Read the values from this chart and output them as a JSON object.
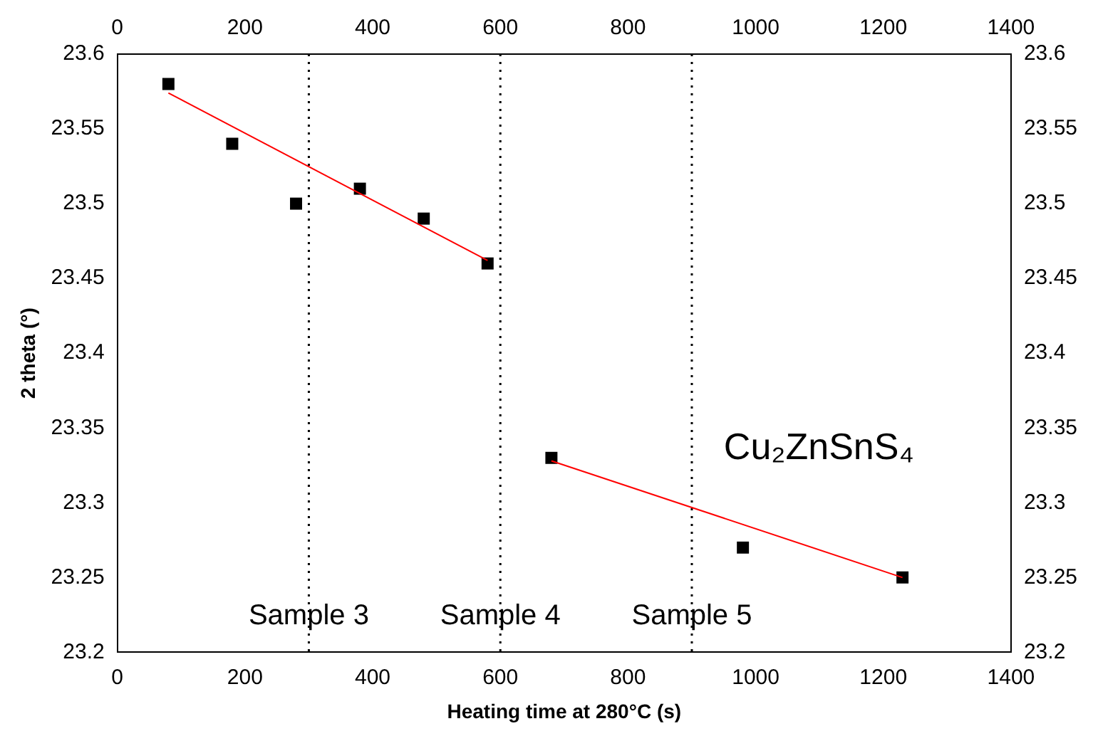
{
  "chart_data": {
    "type": "scatter",
    "xlabel": "Heating time at 280°C (s)",
    "ylabel": "2 theta (°)",
    "xlim": [
      0,
      1400
    ],
    "xticks": [
      0,
      200,
      400,
      600,
      800,
      1000,
      1200,
      1400
    ],
    "x2lim": [
      0,
      1400
    ],
    "x2ticks": [
      0,
      200,
      400,
      600,
      800,
      1000,
      1200,
      1400
    ],
    "ylim": [
      23.2,
      23.6
    ],
    "yticks": [
      23.2,
      23.25,
      23.3,
      23.35,
      23.4,
      23.45,
      23.5,
      23.55,
      23.6
    ],
    "y2lim": [
      23.2,
      23.6
    ],
    "y2ticks": [
      23.2,
      23.25,
      23.3,
      23.35,
      23.4,
      23.45,
      23.5,
      23.55,
      23.6
    ],
    "grid": false,
    "legend": false,
    "marker": "square",
    "series": [
      {
        "type": "scatter",
        "color": "#000000",
        "x": [
          80,
          180,
          280,
          380,
          480,
          580,
          680,
          980,
          1230
        ],
        "values": [
          23.58,
          23.54,
          23.5,
          23.51,
          23.49,
          23.46,
          23.33,
          23.27,
          23.25
        ]
      },
      {
        "type": "line",
        "color": "#ff0000",
        "marker": "none",
        "line_style": "solid",
        "x": [
          80,
          580
        ],
        "values": [
          23.574,
          23.462
        ]
      },
      {
        "type": "line",
        "color": "#ff0000",
        "marker": "none",
        "line_style": "solid",
        "x": [
          680,
          1230
        ],
        "values": [
          23.328,
          23.25
        ]
      }
    ],
    "ref_lines": [
      {
        "axis": "x",
        "value": 300,
        "label": "Sample 3",
        "line_style": "dotted",
        "color": "#000000"
      },
      {
        "axis": "x",
        "value": 600,
        "label": "Sample 4",
        "line_style": "dotted",
        "color": "#000000"
      },
      {
        "axis": "x",
        "value": 900,
        "label": "Sample 5",
        "line_style": "dotted",
        "color": "#000000"
      }
    ],
    "annotations": [
      "Cu₂ZnSnS₄"
    ]
  }
}
